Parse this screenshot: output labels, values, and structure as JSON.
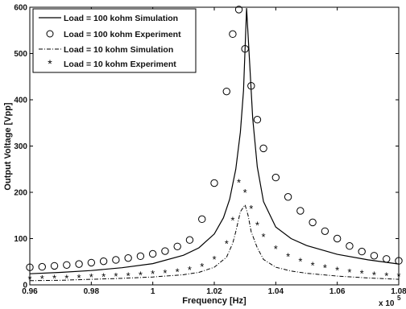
{
  "chart_data": {
    "type": "line",
    "xlabel": "Frequency [Hz]",
    "ylabel": "Output Voltage [Vpp]",
    "x_multiplier_label": "x 10",
    "x_multiplier_exponent": "5",
    "xlim": [
      0.96,
      1.08
    ],
    "ylim": [
      0,
      600
    ],
    "xticks": [
      0.96,
      0.98,
      1,
      1.02,
      1.04,
      1.06,
      1.08
    ],
    "xtick_labels": [
      "0.96",
      "0.98",
      "1",
      "1.02",
      "1.04",
      "1.06",
      "1.08"
    ],
    "yticks": [
      0,
      100,
      200,
      300,
      400,
      500,
      600
    ],
    "ytick_labels": [
      "0",
      "100",
      "200",
      "300",
      "400",
      "500",
      "600"
    ],
    "grid": false,
    "legend_position": "top-left",
    "series": [
      {
        "name": "Load = 100 kohm Simulation",
        "style": "solid-line",
        "x": [
          0.96,
          0.97,
          0.98,
          0.99,
          1.0,
          1.01,
          1.015,
          1.02,
          1.023,
          1.025,
          1.027,
          1.0285,
          1.0295,
          1.0305,
          1.0315,
          1.0325,
          1.034,
          1.036,
          1.04,
          1.045,
          1.05,
          1.06,
          1.07,
          1.08
        ],
        "y": [
          24,
          27,
          31,
          37,
          46,
          64,
          80,
          110,
          145,
          185,
          250,
          330,
          420,
          598,
          480,
          360,
          255,
          180,
          125,
          100,
          85,
          66,
          54,
          45
        ]
      },
      {
        "name": "Load = 100 kohm Experiment",
        "style": "circle-markers",
        "x": [
          0.96,
          0.964,
          0.968,
          0.972,
          0.976,
          0.98,
          0.984,
          0.988,
          0.992,
          0.996,
          1.0,
          1.004,
          1.008,
          1.012,
          1.016,
          1.02,
          1.024,
          1.026,
          1.028,
          1.03,
          1.032,
          1.034,
          1.036,
          1.04,
          1.044,
          1.048,
          1.052,
          1.056,
          1.06,
          1.064,
          1.068,
          1.072,
          1.076,
          1.08
        ],
        "y": [
          38,
          39,
          41,
          43,
          45,
          48,
          51,
          54,
          58,
          62,
          67,
          73,
          83,
          97,
          142,
          220,
          418,
          542,
          595,
          510,
          430,
          357,
          295,
          232,
          190,
          160,
          135,
          116,
          100,
          84,
          72,
          63,
          56,
          52
        ]
      },
      {
        "name": "Load = 10 kohm Simulation",
        "style": "dash-dot-line",
        "x": [
          0.96,
          0.97,
          0.98,
          0.99,
          1.0,
          1.01,
          1.015,
          1.02,
          1.024,
          1.026,
          1.027,
          1.0285,
          1.03,
          1.031,
          1.032,
          1.034,
          1.036,
          1.04,
          1.045,
          1.05,
          1.06,
          1.07,
          1.08
        ],
        "y": [
          9,
          10,
          12,
          14,
          17,
          22,
          27,
          38,
          60,
          90,
          115,
          158,
          173,
          150,
          115,
          80,
          55,
          38,
          30,
          25,
          19,
          15,
          12
        ]
      },
      {
        "name": "Load = 10 kohm Experiment",
        "style": "star-markers",
        "x": [
          0.96,
          0.964,
          0.968,
          0.972,
          0.976,
          0.98,
          0.984,
          0.988,
          0.992,
          0.996,
          1.0,
          1.004,
          1.008,
          1.012,
          1.016,
          1.02,
          1.024,
          1.026,
          1.028,
          1.03,
          1.032,
          1.034,
          1.036,
          1.04,
          1.044,
          1.048,
          1.052,
          1.056,
          1.06,
          1.064,
          1.068,
          1.072,
          1.076,
          1.08
        ],
        "y": [
          13,
          14,
          15,
          15,
          16,
          17,
          18,
          19,
          20,
          22,
          24,
          26,
          29,
          33,
          40,
          56,
          90,
          140,
          222,
          200,
          165,
          130,
          104,
          78,
          62,
          51,
          43,
          37,
          32,
          28,
          25,
          22,
          20,
          19
        ]
      }
    ]
  }
}
